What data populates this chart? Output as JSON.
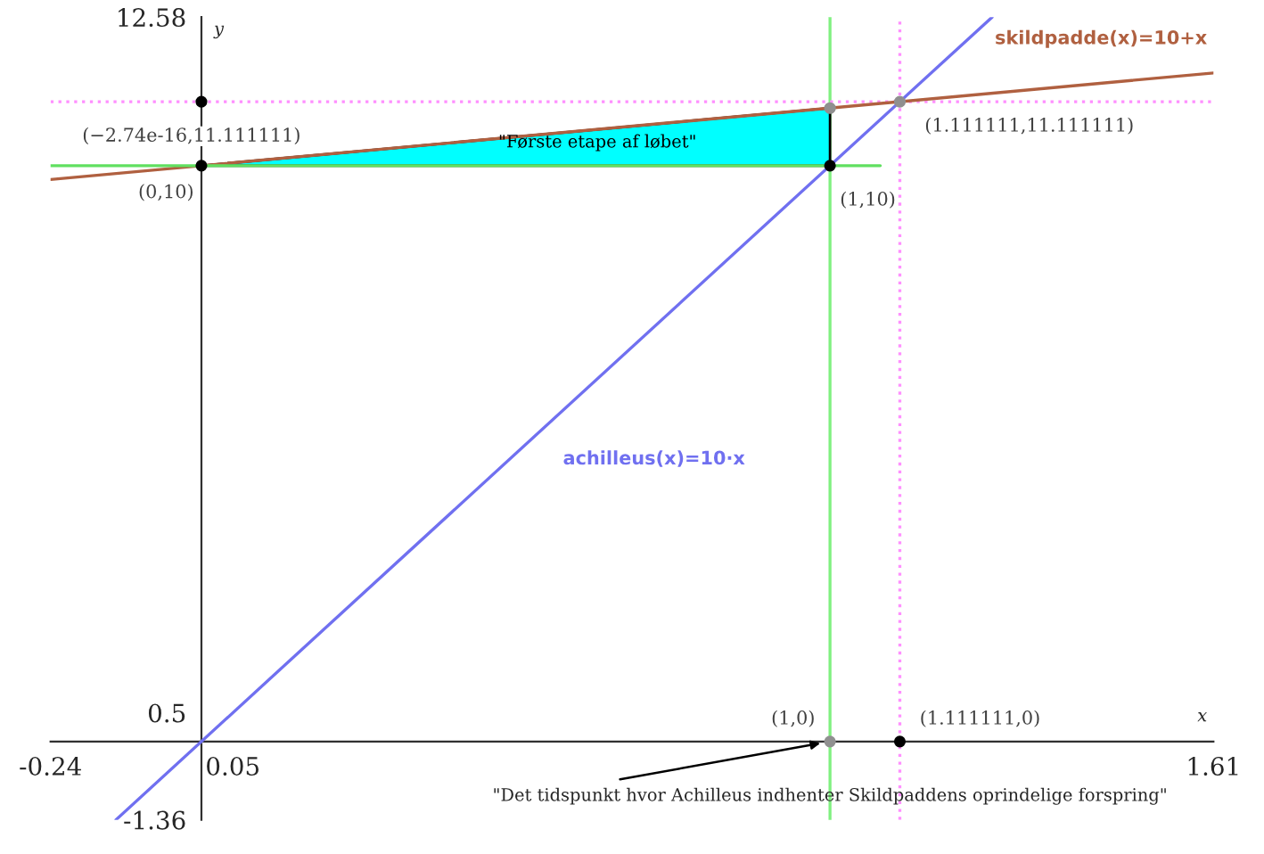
{
  "chart_data": {
    "type": "line",
    "xlabel": "x",
    "ylabel": "y",
    "xlim": [
      -0.24,
      1.61
    ],
    "ylim": [
      -1.36,
      12.58
    ],
    "xticks": [
      -0.24,
      0.05,
      1.61
    ],
    "yticks": [
      -1.36,
      0.5,
      12.58
    ],
    "grid": false,
    "legend": false,
    "line_style": "solid",
    "series": [
      {
        "type": "area",
        "color": "#00ffff",
        "x": [
          0,
          1,
          1
        ],
        "values": [
          10,
          11,
          10
        ]
      },
      {
        "name": "achilleus(x)=10·x",
        "color": "#7070f0",
        "x": [
          -0.136,
          1.258
        ],
        "values": [
          -1.36,
          12.58
        ]
      },
      {
        "name": "skildpadde(x)=10+x",
        "color": "#b06040",
        "x": [
          -0.24,
          1.61
        ],
        "values": [
          9.76,
          11.61
        ]
      },
      {
        "color": "#60e060",
        "x": [
          -0.24,
          1.08
        ],
        "values": [
          10,
          10
        ]
      },
      {
        "type": "scatter",
        "color": "#202020",
        "colors": [
          "#000000",
          "#000000",
          "#909090",
          "#909090",
          "#000000",
          "#909090",
          "#000000"
        ],
        "x": [
          0,
          1,
          1,
          1.111111,
          0,
          1,
          1.111111
        ],
        "values": [
          10,
          10,
          11,
          11.111111,
          11.111111,
          0,
          0
        ]
      }
    ],
    "ref_lines": [
      {
        "axis": "x",
        "value": 1,
        "color": "#80f080",
        "line_style": "solid"
      },
      {
        "axis": "x",
        "value": 1.111111,
        "color": "#ff90ff",
        "line_style": "dotted"
      },
      {
        "axis": "y",
        "value": 11.111111,
        "color": "#ff90ff",
        "line_style": "dotted"
      }
    ],
    "annotations": [
      "\"Første etape af løbet\"",
      {
        "text": "\"Det tidspunkt hvor Achilleus indhenter Skildpaddens oprindelige forspring\"",
        "x": 1,
        "y": 0
      },
      {
        "text": "(0,10)",
        "x": 0,
        "y": 10
      },
      {
        "text": "(1,10)",
        "x": 1,
        "y": 10
      },
      {
        "text": "(1.111111,11.111111)",
        "x": 1.111111,
        "y": 11.111111
      },
      {
        "text": "(−2.74e-16,11.111111)",
        "x": 0,
        "y": 11.111111
      },
      {
        "text": "(1,0)",
        "x": 1,
        "y": 0
      },
      {
        "text": "(1.111111,0)",
        "x": 1.111111,
        "y": 0
      }
    ]
  }
}
